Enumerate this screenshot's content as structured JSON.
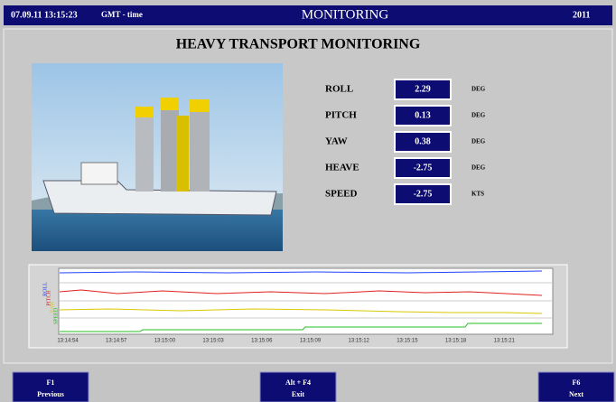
{
  "header": {
    "datetime": "07.09.11 13:15:23",
    "timezone": "GMT - time",
    "title": "MONITORING",
    "year": "2011"
  },
  "panel": {
    "title": "HEAVY TRANSPORT MONITORING"
  },
  "readouts": [
    {
      "label": "ROLL",
      "value": 2.29,
      "unit": "DEG"
    },
    {
      "label": "PITCH",
      "value": 0.13,
      "unit": "DEG"
    },
    {
      "label": "YAW",
      "value": 0.38,
      "unit": "DEG"
    },
    {
      "label": "HEAVE",
      "value": -2.75,
      "unit": "DEG"
    },
    {
      "label": "SPEED",
      "value": -2.75,
      "unit": "KTS"
    }
  ],
  "trend": {
    "series_labels": [
      {
        "text": "ROLL",
        "color": "#2040ff"
      },
      {
        "text": "PITCH",
        "color": "#e02020"
      },
      {
        "text": "YAW",
        "color": "#d8c800"
      },
      {
        "text": "SPEED",
        "color": "#20c020"
      }
    ],
    "time_labels": [
      "13:14:54",
      "13:14:57",
      "13:15:00",
      "13:15:03",
      "13:15:06",
      "13:15:09",
      "13:15:12",
      "13:15:15",
      "13:15:18",
      "13:15:21"
    ]
  },
  "buttons": [
    {
      "key": "F1",
      "label": "Previous"
    },
    {
      "key": "Alt + F4",
      "label": "Exit"
    },
    {
      "key": "F6",
      "label": "Next"
    }
  ]
}
